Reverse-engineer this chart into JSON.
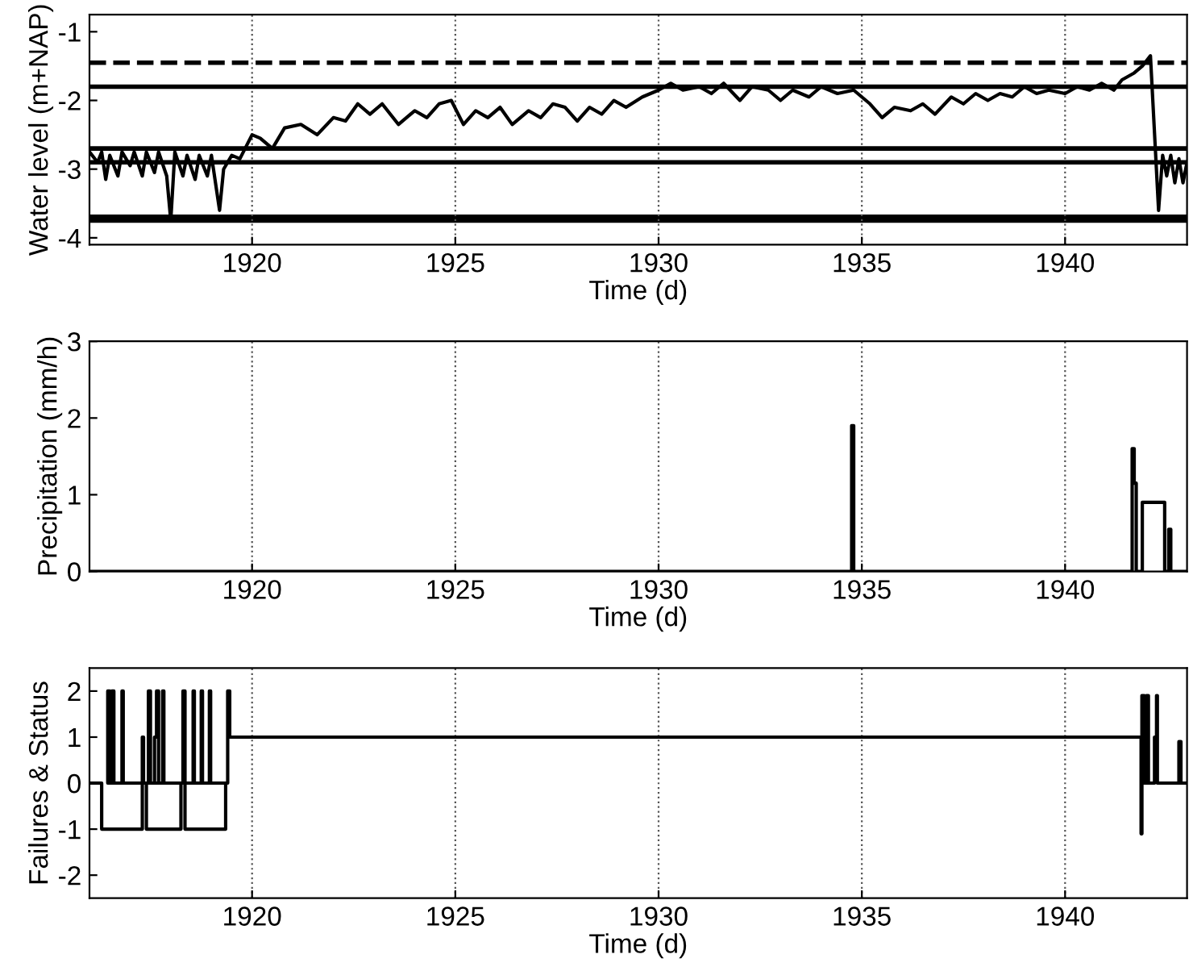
{
  "chart_data": [
    {
      "type": "line",
      "xlabel": "Time (d)",
      "ylabel": "Water level (m+NAP)",
      "xlim": [
        1916,
        1943
      ],
      "xticks": [
        1920,
        1925,
        1930,
        1935,
        1940
      ],
      "ylim": [
        -4.1,
        -0.75
      ],
      "yticks": [
        -4,
        -3,
        -2,
        -1
      ],
      "grid": "x",
      "marker": "none",
      "series": [
        {
          "color": "#000000",
          "x": [
            1916.0,
            1916.2,
            1916.3,
            1916.4,
            1916.5,
            1916.7,
            1916.8,
            1917.0,
            1917.1,
            1917.3,
            1917.4,
            1917.6,
            1917.7,
            1917.9,
            1918.0,
            1918.1,
            1918.3,
            1918.4,
            1918.6,
            1918.7,
            1918.9,
            1919.0,
            1919.2,
            1919.3,
            1919.5,
            1919.7,
            1920.0,
            1920.2,
            1920.5,
            1920.8,
            1921.2,
            1921.6,
            1922.0,
            1922.3,
            1922.6,
            1922.9,
            1923.2,
            1923.6,
            1924.0,
            1924.3,
            1924.6,
            1924.9,
            1925.2,
            1925.5,
            1925.8,
            1926.1,
            1926.4,
            1926.8,
            1927.1,
            1927.4,
            1927.7,
            1928.0,
            1928.3,
            1928.6,
            1928.9,
            1929.2,
            1929.6,
            1930.0,
            1930.3,
            1930.6,
            1931.0,
            1931.3,
            1931.6,
            1932.0,
            1932.3,
            1932.7,
            1933.0,
            1933.3,
            1933.7,
            1934.0,
            1934.4,
            1934.8,
            1935.2,
            1935.5,
            1935.8,
            1936.2,
            1936.5,
            1936.8,
            1937.2,
            1937.5,
            1937.8,
            1938.1,
            1938.4,
            1938.7,
            1939.0,
            1939.3,
            1939.6,
            1940.0,
            1940.3,
            1940.6,
            1940.9,
            1941.2,
            1941.4,
            1941.7,
            1941.9,
            1942.1,
            1942.3,
            1942.4,
            1942.5,
            1942.6,
            1942.7,
            1942.8,
            1942.9,
            1943.0
          ],
          "values": [
            -2.75,
            -2.9,
            -2.75,
            -3.15,
            -2.8,
            -3.1,
            -2.75,
            -2.95,
            -2.75,
            -3.1,
            -2.75,
            -3.05,
            -2.75,
            -3.1,
            -3.75,
            -2.75,
            -3.1,
            -2.8,
            -3.15,
            -2.8,
            -3.1,
            -2.8,
            -3.6,
            -3.0,
            -2.8,
            -2.85,
            -2.5,
            -2.55,
            -2.7,
            -2.4,
            -2.35,
            -2.5,
            -2.25,
            -2.3,
            -2.05,
            -2.2,
            -2.05,
            -2.35,
            -2.15,
            -2.25,
            -2.05,
            -2.0,
            -2.35,
            -2.15,
            -2.25,
            -2.1,
            -2.35,
            -2.15,
            -2.25,
            -2.05,
            -2.1,
            -2.3,
            -2.1,
            -2.2,
            -2.0,
            -2.1,
            -1.95,
            -1.85,
            -1.75,
            -1.85,
            -1.8,
            -1.9,
            -1.75,
            -2.0,
            -1.8,
            -1.85,
            -2.0,
            -1.85,
            -1.95,
            -1.8,
            -1.9,
            -1.85,
            -2.05,
            -2.25,
            -2.1,
            -2.15,
            -2.05,
            -2.2,
            -1.95,
            -2.05,
            -1.9,
            -2.0,
            -1.9,
            -1.95,
            -1.8,
            -1.9,
            -1.85,
            -1.9,
            -1.8,
            -1.85,
            -1.75,
            -1.85,
            -1.7,
            -1.6,
            -1.5,
            -1.35,
            -3.6,
            -2.8,
            -3.1,
            -2.8,
            -3.2,
            -2.85,
            -3.2,
            -2.9
          ]
        }
      ],
      "ref_lines": [
        {
          "axis": "y",
          "value": -1.45,
          "color": "#000000",
          "line_style": "dashed"
        },
        {
          "axis": "y",
          "value": -1.8,
          "color": "#000000",
          "line_style": "solid"
        },
        {
          "axis": "y",
          "value": -2.7,
          "color": "#000000",
          "line_style": "solid"
        },
        {
          "axis": "y",
          "value": -2.9,
          "color": "#000000",
          "line_style": "solid"
        }
      ],
      "bands": [
        {
          "axis": "y",
          "from": -3.78,
          "to": -3.66,
          "color": "#000000"
        }
      ]
    },
    {
      "type": "line",
      "xlabel": "Time (d)",
      "ylabel": "Precipitation (mm/h)",
      "xlim": [
        1916,
        1943
      ],
      "xticks": [
        1920,
        1925,
        1930,
        1935,
        1940
      ],
      "ylim": [
        0,
        3
      ],
      "yticks": [
        0,
        1,
        2,
        3
      ],
      "grid": "x",
      "marker": "none",
      "series": [
        {
          "color": "#000000",
          "x": [
            1916.0,
            1934.75,
            1934.75,
            1934.8,
            1934.8,
            1941.65,
            1941.65,
            1941.7,
            1941.7,
            1941.75,
            1941.75,
            1941.9,
            1941.9,
            1942.45,
            1942.45,
            1942.55,
            1942.55,
            1942.6,
            1942.6,
            1943.0
          ],
          "values": [
            0,
            0,
            1.9,
            1.9,
            0,
            0,
            1.6,
            1.6,
            1.15,
            1.15,
            0,
            0,
            0.9,
            0.9,
            0,
            0,
            0.55,
            0.55,
            0,
            0
          ]
        }
      ]
    },
    {
      "type": "line",
      "xlabel": "Time (d)",
      "ylabel": "Failures & Status",
      "xlim": [
        1916,
        1943
      ],
      "xticks": [
        1920,
        1925,
        1930,
        1935,
        1940
      ],
      "ylim": [
        -2.5,
        2.5
      ],
      "yticks": [
        -2,
        -1,
        0,
        1,
        2
      ],
      "grid": "x",
      "marker": "none",
      "series": [
        {
          "color": "#000000",
          "x": [
            1916.0,
            1916.3,
            1916.3,
            1917.3,
            1917.3,
            1917.4,
            1917.4,
            1918.25,
            1918.25,
            1918.35,
            1918.35,
            1919.35,
            1919.35,
            1916.45,
            1916.45,
            1916.5,
            1916.5,
            1916.55,
            1916.55,
            1916.6,
            1916.6,
            1916.8,
            1916.8,
            1916.83,
            1916.83,
            1917.3,
            1917.3,
            1917.33,
            1917.33,
            1917.45,
            1917.45,
            1917.5,
            1917.5,
            1917.6,
            1917.6,
            1917.65,
            1917.65,
            1917.7,
            1917.7,
            1917.8,
            1917.8,
            1917.83,
            1917.83,
            1918.3,
            1918.3,
            1918.35,
            1918.35,
            1918.55,
            1918.55,
            1918.58,
            1918.58,
            1918.75,
            1918.75,
            1918.78,
            1918.78,
            1918.95,
            1918.95,
            1918.98,
            1918.98,
            1919.4,
            1919.4,
            1919.45,
            1919.45,
            1941.87,
            1941.87,
            1941.89,
            1941.89,
            1941.95,
            1941.95,
            1942.0,
            1942.0,
            1942.05,
            1942.05,
            1942.2,
            1942.2,
            1942.25,
            1942.25,
            1942.27,
            1942.27,
            1942.8,
            1942.8,
            1942.85,
            1942.85,
            1943.0
          ],
          "values": [
            0,
            0,
            -1,
            -1,
            0,
            0,
            -1,
            -1,
            0,
            0,
            -1,
            -1,
            0,
            0,
            2,
            2,
            0,
            0,
            2,
            2,
            0,
            0,
            2,
            2,
            0,
            0,
            1,
            1,
            0,
            0,
            2,
            2,
            0,
            0,
            1,
            1,
            2,
            2,
            0,
            0,
            2,
            2,
            0,
            0,
            2,
            2,
            0,
            0,
            2,
            2,
            0,
            0,
            2,
            2,
            0,
            0,
            2,
            2,
            0,
            0,
            2,
            2,
            1,
            1,
            -1.1,
            -1.1,
            1.9,
            1.9,
            0,
            0,
            1.9,
            1.9,
            0,
            0,
            1.0,
            1.0,
            1.9,
            1.9,
            0,
            0,
            0.9,
            0.9,
            0,
            0
          ]
        }
      ]
    }
  ]
}
